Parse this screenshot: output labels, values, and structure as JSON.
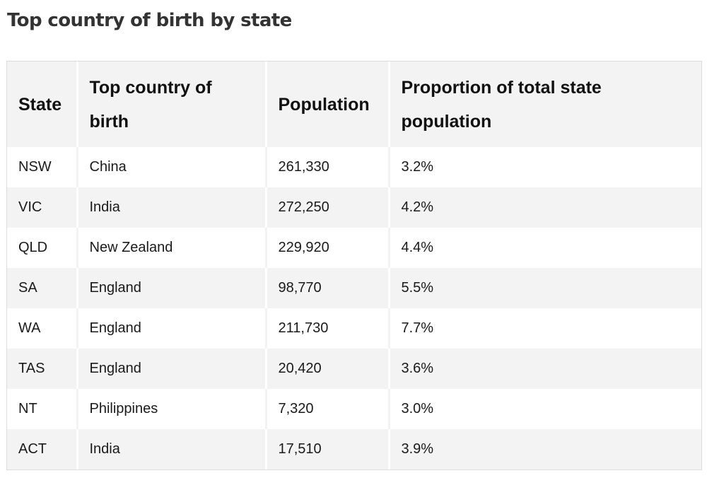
{
  "page": {
    "title": "Top country of birth by state"
  },
  "table": {
    "headers": {
      "state": "State",
      "country": "Top country of birth",
      "population": "Population",
      "proportion": "Proportion of total state population"
    },
    "rows": [
      {
        "state": "NSW",
        "country": "China",
        "population": "261,330",
        "proportion": "3.2%"
      },
      {
        "state": "VIC",
        "country": "India",
        "population": "272,250",
        "proportion": "4.2%"
      },
      {
        "state": "QLD",
        "country": "New Zealand",
        "population": "229,920",
        "proportion": "4.4%"
      },
      {
        "state": "SA",
        "country": "England",
        "population": "98,770",
        "proportion": "5.5%"
      },
      {
        "state": "WA",
        "country": "England",
        "population": "211,730",
        "proportion": "7.7%"
      },
      {
        "state": "TAS",
        "country": "England",
        "population": "20,420",
        "proportion": "3.6%"
      },
      {
        "state": "NT",
        "country": "Philippines",
        "population": "7,320",
        "proportion": "3.0%"
      },
      {
        "state": "ACT",
        "country": "India",
        "population": "17,510",
        "proportion": "3.9%"
      }
    ]
  }
}
